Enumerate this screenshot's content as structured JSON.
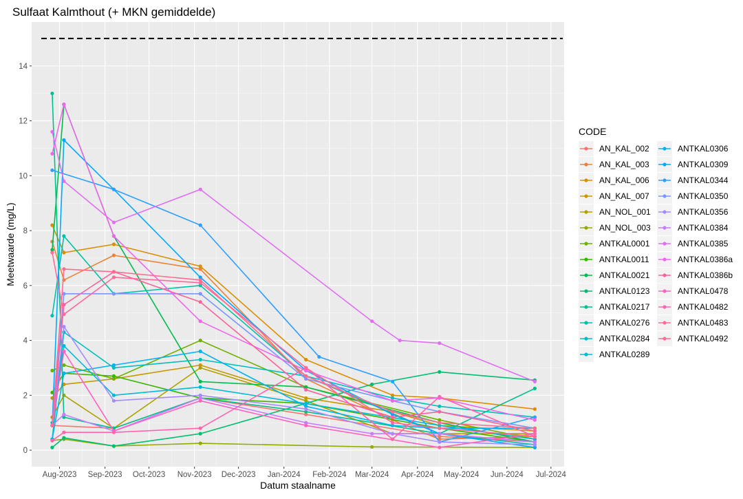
{
  "chart_data": {
    "type": "line",
    "title": "Sulfaat Kalmthout (+ MKN gemiddelde)",
    "xlabel": "Datum staalname",
    "ylabel": "Meetwaarde (mg/L)",
    "xlim": [
      "2023-07-13",
      "2024-07-10"
    ],
    "ylim": [
      -0.6,
      15.6
    ],
    "y_ticks": [
      0,
      2,
      4,
      6,
      8,
      10,
      12,
      14
    ],
    "x_ticks": [
      {
        "date": "2023-08-01",
        "label": "Aug-2023"
      },
      {
        "date": "2023-09-01",
        "label": "Sep-2023"
      },
      {
        "date": "2023-10-01",
        "label": "Oct-2023"
      },
      {
        "date": "2023-11-01",
        "label": "Nov-2023"
      },
      {
        "date": "2023-12-01",
        "label": "Dec-2023"
      },
      {
        "date": "2024-01-01",
        "label": "Jan-2024"
      },
      {
        "date": "2024-02-01",
        "label": "Feb-2024"
      },
      {
        "date": "2024-03-01",
        "label": "Mar-2024"
      },
      {
        "date": "2024-04-01",
        "label": "Apr-2024"
      },
      {
        "date": "2024-05-01",
        "label": "May-2024"
      },
      {
        "date": "2024-06-01",
        "label": "Jun-2024"
      },
      {
        "date": "2024-07-01",
        "label": "Jul-2024"
      }
    ],
    "reference_line": {
      "y": 15,
      "style": "dashed",
      "color": "#000000"
    },
    "grid": true,
    "panel_background": "#ebebeb",
    "legend_title": "CODE",
    "legend_position": "right",
    "series": [
      {
        "name": "AN_KAL_002",
        "color": "#F8766D",
        "points": [
          [
            "2023-07-27",
            0.9
          ],
          [
            "2023-09-07",
            0.8
          ],
          [
            "2023-11-05",
            1.9
          ],
          [
            "2024-01-16",
            1.3
          ],
          [
            "2024-04-16",
            0.5
          ],
          [
            "2024-06-20",
            0.3
          ]
        ]
      },
      {
        "name": "AN_KAL_003",
        "color": "#EC8239",
        "points": [
          [
            "2023-07-27",
            7.6
          ],
          [
            "2023-08-04",
            6.2
          ],
          [
            "2023-09-07",
            7.1
          ],
          [
            "2023-11-05",
            6.6
          ],
          [
            "2024-01-16",
            2.6
          ],
          [
            "2024-03-15",
            1.1
          ],
          [
            "2024-04-16",
            0.4
          ],
          [
            "2024-06-20",
            0.5
          ]
        ]
      },
      {
        "name": "AN_KAL_006",
        "color": "#DB8E00",
        "points": [
          [
            "2023-07-27",
            8.2
          ],
          [
            "2023-08-04",
            7.2
          ],
          [
            "2023-09-07",
            7.5
          ],
          [
            "2023-11-05",
            6.7
          ],
          [
            "2024-01-16",
            3.3
          ],
          [
            "2024-03-15",
            2.0
          ],
          [
            "2024-04-16",
            1.9
          ],
          [
            "2024-06-20",
            1.5
          ]
        ]
      },
      {
        "name": "AN_KAL_007",
        "color": "#C69900",
        "points": [
          [
            "2023-07-27",
            1.9
          ],
          [
            "2023-08-04",
            2.4
          ],
          [
            "2023-09-07",
            2.6
          ],
          [
            "2023-11-05",
            3.1
          ],
          [
            "2024-01-16",
            1.9
          ],
          [
            "2024-03-15",
            1.4
          ],
          [
            "2024-04-16",
            0.9
          ],
          [
            "2024-06-20",
            0.7
          ]
        ]
      },
      {
        "name": "AN_NOL_001",
        "color": "#AEA200",
        "points": [
          [
            "2023-07-27",
            1.2
          ],
          [
            "2023-08-04",
            2.0
          ],
          [
            "2023-09-07",
            0.8
          ],
          [
            "2023-11-05",
            3.0
          ],
          [
            "2024-01-16",
            1.8
          ],
          [
            "2024-03-15",
            0.6
          ],
          [
            "2024-04-16",
            0.6
          ],
          [
            "2024-06-20",
            0.6
          ]
        ]
      },
      {
        "name": "AN_NOL_003",
        "color": "#93AA00",
        "points": [
          [
            "2023-07-27",
            0.35
          ],
          [
            "2023-08-04",
            0.4
          ],
          [
            "2023-09-07",
            0.15
          ],
          [
            "2023-11-05",
            0.25
          ],
          [
            "2024-03-01",
            0.12
          ],
          [
            "2024-06-20",
            0.1
          ]
        ]
      },
      {
        "name": "ANTKAL0001",
        "color": "#70B000",
        "points": [
          [
            "2023-07-27",
            2.9
          ],
          [
            "2023-08-04",
            3.1
          ],
          [
            "2023-09-07",
            2.6
          ],
          [
            "2023-11-05",
            4.0
          ],
          [
            "2024-01-16",
            2.3
          ],
          [
            "2024-04-16",
            1.1
          ],
          [
            "2024-06-20",
            0.4
          ]
        ]
      },
      {
        "name": "ANTKAL0011",
        "color": "#39B600",
        "points": [
          [
            "2023-07-27",
            2.1
          ],
          [
            "2023-08-04",
            2.8
          ],
          [
            "2023-09-07",
            2.7
          ],
          [
            "2023-11-05",
            1.9
          ],
          [
            "2024-01-16",
            1.7
          ],
          [
            "2024-04-16",
            0.8
          ],
          [
            "2024-06-20",
            0.3
          ]
        ]
      },
      {
        "name": "ANTKAL0021",
        "color": "#00BB4E",
        "points": [
          [
            "2023-07-27",
            7.3
          ],
          [
            "2023-08-04",
            12.6
          ],
          [
            "2023-09-07",
            7.8
          ],
          [
            "2023-11-05",
            2.5
          ],
          [
            "2024-01-16",
            2.3
          ],
          [
            "2024-04-16",
            1.0
          ],
          [
            "2024-06-20",
            0.3
          ]
        ]
      },
      {
        "name": "ANTKAL0123",
        "color": "#00BE70",
        "points": [
          [
            "2023-07-27",
            0.1
          ],
          [
            "2023-08-04",
            0.45
          ],
          [
            "2023-09-07",
            0.15
          ],
          [
            "2023-11-05",
            0.6
          ],
          [
            "2024-03-01",
            2.4
          ],
          [
            "2024-04-16",
            2.85
          ],
          [
            "2024-06-20",
            2.55
          ]
        ]
      },
      {
        "name": "ANTKAL0217",
        "color": "#00C08D",
        "points": [
          [
            "2023-07-27",
            13.0
          ],
          [
            "2023-08-04",
            1.2
          ],
          [
            "2023-09-07",
            0.8
          ],
          [
            "2023-11-05",
            1.9
          ],
          [
            "2024-01-16",
            1.4
          ],
          [
            "2024-04-16",
            0.6
          ],
          [
            "2024-06-20",
            2.25
          ]
        ]
      },
      {
        "name": "ANTKAL0276",
        "color": "#00C1A7",
        "points": [
          [
            "2023-07-27",
            4.9
          ],
          [
            "2023-08-04",
            7.8
          ],
          [
            "2023-09-07",
            5.7
          ],
          [
            "2023-11-05",
            6.0
          ],
          [
            "2024-01-16",
            2.7
          ],
          [
            "2024-04-16",
            0.6
          ],
          [
            "2024-06-20",
            0.2
          ]
        ]
      },
      {
        "name": "ANTKAL0284",
        "color": "#00BFBF",
        "points": [
          [
            "2023-07-27",
            0.4
          ],
          [
            "2023-08-04",
            4.3
          ],
          [
            "2023-09-07",
            3.0
          ],
          [
            "2023-11-05",
            3.3
          ],
          [
            "2024-01-16",
            2.7
          ],
          [
            "2024-03-15",
            1.9
          ],
          [
            "2024-04-16",
            1.6
          ],
          [
            "2024-06-20",
            1.2
          ]
        ]
      },
      {
        "name": "ANTKAL0289",
        "color": "#00BBD7",
        "points": [
          [
            "2023-07-27",
            1.0
          ],
          [
            "2023-08-04",
            3.8
          ],
          [
            "2023-09-07",
            2.0
          ],
          [
            "2023-11-05",
            2.3
          ],
          [
            "2024-01-16",
            1.7
          ],
          [
            "2024-04-16",
            0.9
          ],
          [
            "2024-06-20",
            0.4
          ]
        ]
      },
      {
        "name": "ANTKAL0306",
        "color": "#00B4EF",
        "points": [
          [
            "2023-07-27",
            0.4
          ],
          [
            "2023-08-04",
            2.8
          ],
          [
            "2023-09-07",
            3.1
          ],
          [
            "2023-11-05",
            3.6
          ],
          [
            "2024-01-16",
            1.6
          ],
          [
            "2024-03-15",
            0.9
          ],
          [
            "2024-04-16",
            0.8
          ],
          [
            "2024-06-20",
            0.8
          ]
        ]
      },
      {
        "name": "ANTKAL0309",
        "color": "#00A9FF",
        "points": [
          [
            "2023-07-27",
            0.9
          ],
          [
            "2023-08-04",
            11.3
          ],
          [
            "2023-09-07",
            9.5
          ],
          [
            "2023-11-05",
            6.3
          ],
          [
            "2024-01-16",
            2.9
          ],
          [
            "2024-03-15",
            1.3
          ],
          [
            "2024-04-16",
            0.6
          ],
          [
            "2024-06-20",
            0.1
          ]
        ]
      },
      {
        "name": "ANTKAL0344",
        "color": "#2C9FFF",
        "points": [
          [
            "2023-07-27",
            10.2
          ],
          [
            "2023-09-07",
            9.5
          ],
          [
            "2023-11-05",
            8.2
          ],
          [
            "2024-01-25",
            3.4
          ],
          [
            "2024-03-15",
            2.5
          ],
          [
            "2024-04-16",
            0.3
          ],
          [
            "2024-06-20",
            1.2
          ]
        ]
      },
      {
        "name": "ANTKAL0350",
        "color": "#7997FF",
        "points": [
          [
            "2023-07-27",
            0.9
          ],
          [
            "2023-08-04",
            5.7
          ],
          [
            "2023-09-07",
            5.7
          ],
          [
            "2023-11-05",
            5.7
          ],
          [
            "2024-01-16",
            2.6
          ],
          [
            "2024-03-15",
            1.8
          ],
          [
            "2024-04-16",
            1.4
          ],
          [
            "2024-06-20",
            0.8
          ]
        ]
      },
      {
        "name": "ANTKAL0356",
        "color": "#A58AFF",
        "points": [
          [
            "2023-07-27",
            0.9
          ],
          [
            "2023-08-04",
            4.5
          ],
          [
            "2023-09-07",
            1.8
          ],
          [
            "2023-11-05",
            2.0
          ],
          [
            "2024-01-16",
            1.5
          ],
          [
            "2024-03-15",
            0.6
          ],
          [
            "2024-04-16",
            0.3
          ],
          [
            "2024-06-20",
            0.2
          ]
        ]
      },
      {
        "name": "ANTKAL0384",
        "color": "#C77CFF",
        "points": [
          [
            "2023-07-27",
            0.9
          ],
          [
            "2023-08-04",
            1.3
          ],
          [
            "2023-09-07",
            0.7
          ],
          [
            "2023-11-05",
            1.9
          ],
          [
            "2024-01-16",
            1.0
          ],
          [
            "2024-03-01",
            0.6
          ],
          [
            "2024-04-16",
            0.6
          ],
          [
            "2024-06-20",
            0.3
          ]
        ]
      },
      {
        "name": "ANTKAL0385",
        "color": "#E06FF1",
        "points": [
          [
            "2023-07-27",
            11.6
          ],
          [
            "2023-08-04",
            9.8
          ],
          [
            "2023-09-07",
            8.3
          ],
          [
            "2023-11-05",
            9.5
          ],
          [
            "2024-03-01",
            4.7
          ],
          [
            "2024-03-20",
            4.0
          ],
          [
            "2024-04-16",
            3.9
          ],
          [
            "2024-06-20",
            2.5
          ]
        ]
      },
      {
        "name": "ANTKAL0386a",
        "color": "#F066EA",
        "points": [
          [
            "2023-07-27",
            10.8
          ],
          [
            "2023-08-04",
            12.6
          ],
          [
            "2023-09-07",
            7.8
          ],
          [
            "2023-11-05",
            4.7
          ],
          [
            "2024-01-16",
            2.9
          ],
          [
            "2024-03-15",
            1.8
          ],
          [
            "2024-04-16",
            1.9
          ],
          [
            "2024-06-20",
            1.1
          ]
        ]
      },
      {
        "name": "ANTKAL0386b",
        "color": "#F8639C",
        "points": [
          [
            "2023-07-27",
            0.9
          ],
          [
            "2023-08-04",
            5.3
          ],
          [
            "2023-09-07",
            6.5
          ],
          [
            "2023-11-05",
            5.4
          ],
          [
            "2024-01-16",
            2.2
          ],
          [
            "2024-03-15",
            1.2
          ],
          [
            "2024-04-16",
            1.4
          ],
          [
            "2024-06-20",
            0.7
          ]
        ]
      },
      {
        "name": "ANTKAL0478",
        "color": "#FF61C3",
        "points": [
          [
            "2023-07-27",
            0.9
          ],
          [
            "2023-08-04",
            3.6
          ],
          [
            "2023-09-07",
            0.7
          ],
          [
            "2023-11-05",
            1.8
          ],
          [
            "2024-01-16",
            0.9
          ],
          [
            "2024-04-16",
            0.1
          ],
          [
            "2024-06-20",
            0.6
          ]
        ]
      },
      {
        "name": "ANTKAL0482",
        "color": "#FF64B0",
        "points": [
          [
            "2023-07-27",
            0.35
          ],
          [
            "2023-08-04",
            0.65
          ],
          [
            "2023-09-07",
            0.65
          ],
          [
            "2023-11-05",
            0.8
          ],
          [
            "2024-01-16",
            3.0
          ],
          [
            "2024-03-15",
            0.4
          ],
          [
            "2024-04-16",
            1.95
          ],
          [
            "2024-06-20",
            0.5
          ]
        ]
      },
      {
        "name": "ANTKAL0483",
        "color": "#FF699C",
        "points": [
          [
            "2023-07-27",
            7.2
          ],
          [
            "2023-08-04",
            4.95
          ],
          [
            "2023-09-07",
            6.3
          ],
          [
            "2023-11-05",
            6.1
          ],
          [
            "2024-01-16",
            3.0
          ],
          [
            "2024-03-15",
            1.0
          ],
          [
            "2024-04-16",
            0.8
          ],
          [
            "2024-06-20",
            0.5
          ]
        ]
      },
      {
        "name": "ANTKAL0492",
        "color": "#FF6C91",
        "points": [
          [
            "2023-07-27",
            0.9
          ],
          [
            "2023-08-04",
            6.6
          ],
          [
            "2023-09-07",
            6.5
          ],
          [
            "2023-11-05",
            6.2
          ],
          [
            "2024-01-16",
            2.7
          ],
          [
            "2024-03-15",
            1.4
          ],
          [
            "2024-04-16",
            1.0
          ],
          [
            "2024-06-20",
            0.8
          ]
        ]
      }
    ]
  }
}
